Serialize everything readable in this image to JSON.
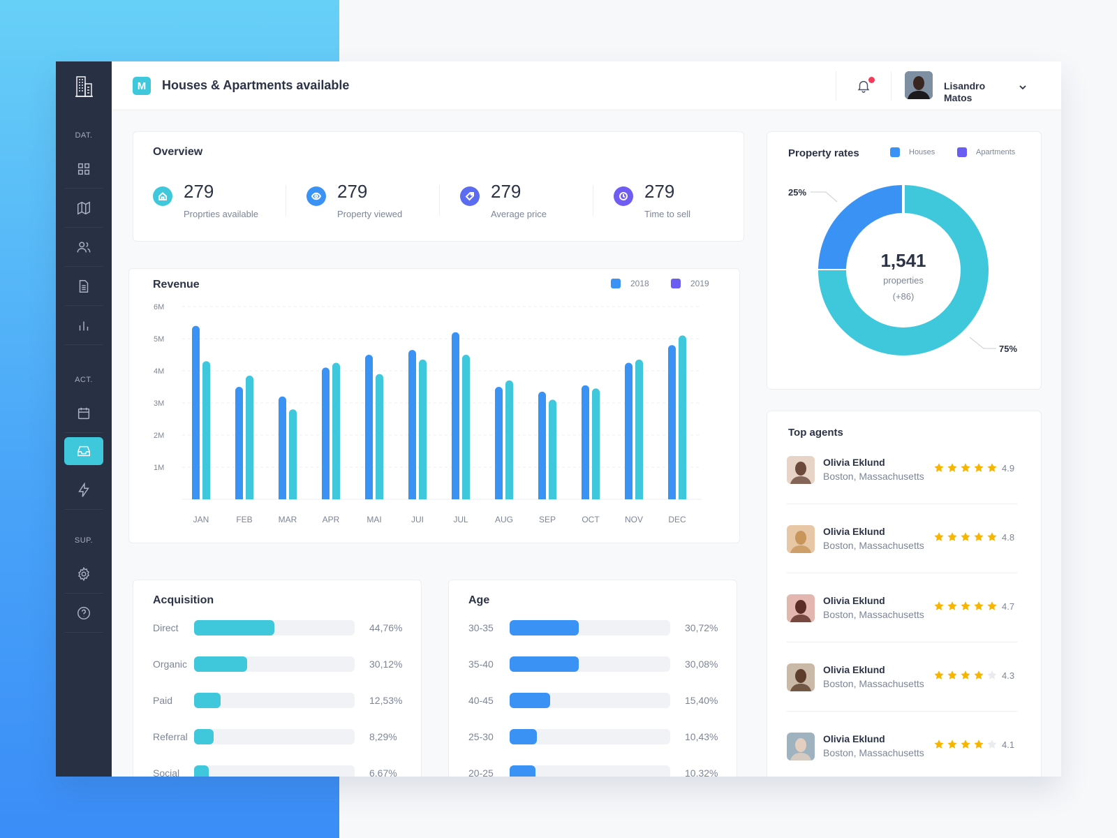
{
  "header": {
    "brand_letter": "M",
    "title": "Houses & Apartments available",
    "user_name": "Lisandro Matos"
  },
  "sidebar": {
    "sections": [
      "DAT.",
      "ACT.",
      "SUP."
    ],
    "items": [
      {
        "icon": "grid-icon"
      },
      {
        "icon": "map-icon"
      },
      {
        "icon": "users-icon"
      },
      {
        "icon": "document-icon"
      },
      {
        "icon": "bar-chart-icon"
      },
      {
        "icon": "calendar-icon"
      },
      {
        "icon": "inbox-icon",
        "active": true
      },
      {
        "icon": "lightning-icon"
      },
      {
        "icon": "gear-icon"
      },
      {
        "icon": "help-icon"
      }
    ]
  },
  "overview": {
    "title": "Overview",
    "stats": [
      {
        "value": "279",
        "label": "Proprties available",
        "color": "#3fc7dc",
        "icon": "home-icon"
      },
      {
        "value": "279",
        "label": "Property viewed",
        "color": "#3a92f5",
        "icon": "eye-icon"
      },
      {
        "value": "279",
        "label": "Average price",
        "color": "#5b6cf0",
        "icon": "tag-icon"
      },
      {
        "value": "279",
        "label": "Time to sell",
        "color": "#6f5cf2",
        "icon": "clock-icon"
      }
    ]
  },
  "revenue": {
    "title": "Revenue",
    "legend": [
      {
        "name": "2018",
        "color": "#3a92f5"
      },
      {
        "name": "2019",
        "color": "#6a5ef2"
      }
    ]
  },
  "chart_data": {
    "type": "bar",
    "title": "Revenue",
    "categories": [
      "JAN",
      "FEB",
      "MAR",
      "APR",
      "MAI",
      "JUI",
      "JUL",
      "AUG",
      "SEP",
      "OCT",
      "NOV",
      "DEC"
    ],
    "y_ticks": [
      "1M",
      "2M",
      "3M",
      "4M",
      "5M",
      "6M"
    ],
    "ylim": [
      0,
      6
    ],
    "series": [
      {
        "name": "2018",
        "color": "#3a92f5",
        "values": [
          5.4,
          3.5,
          3.2,
          4.1,
          4.5,
          4.65,
          5.2,
          3.5,
          3.35,
          3.55,
          4.25,
          4.8
        ]
      },
      {
        "name": "2019",
        "color": "#3fc7dc",
        "values": [
          4.3,
          3.85,
          2.8,
          4.25,
          3.9,
          4.35,
          4.5,
          3.7,
          3.1,
          3.45,
          4.35,
          5.1
        ]
      }
    ],
    "grid": true,
    "legend_position": "top-right"
  },
  "property_rates": {
    "title": "Property rates",
    "legend": [
      {
        "name": "Houses",
        "color": "#3a92f5"
      },
      {
        "name": "Apartments",
        "color": "#6a5ef2"
      }
    ],
    "total": "1,541",
    "total_label": "properties",
    "total_delta": "(+86)",
    "slices": [
      {
        "label": "25%",
        "value": 25,
        "color": "#3a92f5"
      },
      {
        "label": "75%",
        "value": 75,
        "color": "#3fc7dc"
      }
    ]
  },
  "acquisition": {
    "title": "Acquisition",
    "color": "#3fc7dc",
    "rows": [
      {
        "label": "Direct",
        "pct": "44,76%",
        "fill": 50
      },
      {
        "label": "Organic",
        "pct": "30,12%",
        "fill": 33
      },
      {
        "label": "Paid",
        "pct": "12,53%",
        "fill": 16.5
      },
      {
        "label": "Referral",
        "pct": "8,29%",
        "fill": 12
      },
      {
        "label": "Social",
        "pct": "6,67%",
        "fill": 9
      }
    ]
  },
  "age": {
    "title": "Age",
    "color": "#3a92f5",
    "rows": [
      {
        "label": "30-35",
        "pct": "30,72%",
        "fill": 43
      },
      {
        "label": "35-40",
        "pct": "30,08%",
        "fill": 43
      },
      {
        "label": "40-45",
        "pct": "15,40%",
        "fill": 25
      },
      {
        "label": "25-30",
        "pct": "10,43%",
        "fill": 17
      },
      {
        "label": "20-25",
        "pct": "10,32%",
        "fill": 16
      }
    ]
  },
  "top_agents": {
    "title": "Top agents",
    "agents": [
      {
        "name": "Olivia Eklund",
        "location": "Boston, Massachusetts",
        "rating": "4.9",
        "stars": 5
      },
      {
        "name": "Olivia Eklund",
        "location": "Boston, Massachusetts",
        "rating": "4.8",
        "stars": 5
      },
      {
        "name": "Olivia Eklund",
        "location": "Boston, Massachusetts",
        "rating": "4.7",
        "stars": 5
      },
      {
        "name": "Olivia Eklund",
        "location": "Boston, Massachusetts",
        "rating": "4.3",
        "stars": 4
      },
      {
        "name": "Olivia Eklund",
        "location": "Boston, Massachusetts",
        "rating": "4.1",
        "stars": 4
      }
    ]
  }
}
